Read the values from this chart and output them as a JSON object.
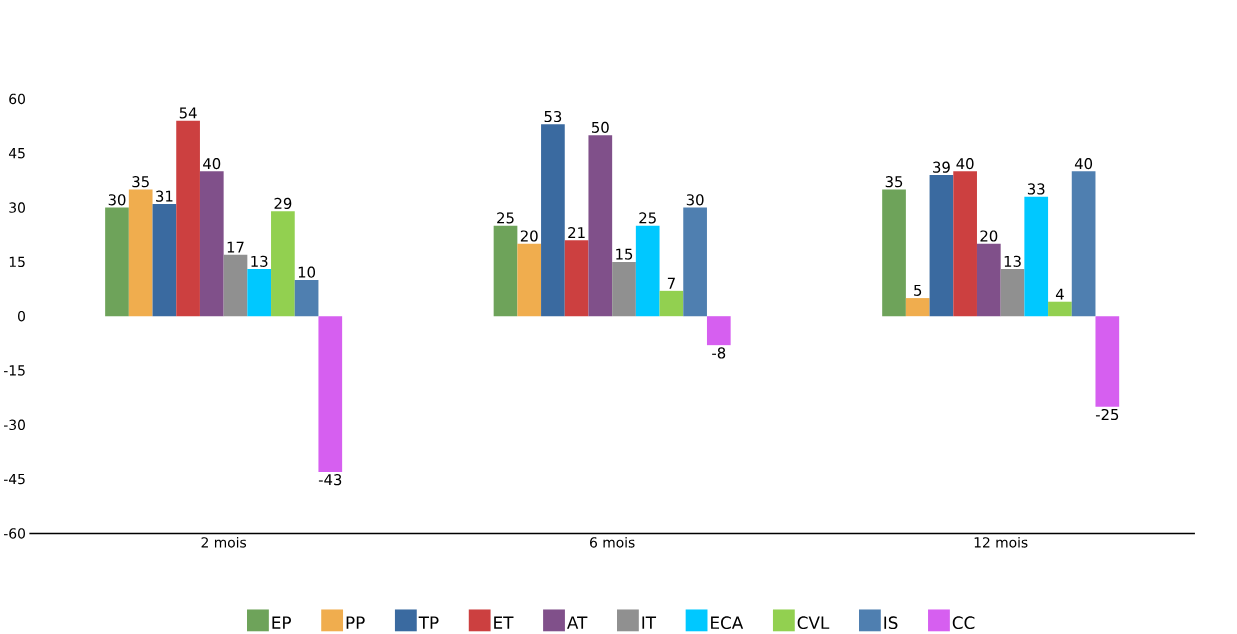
{
  "chart_data": {
    "type": "bar",
    "categories": [
      "2 mois",
      "6 mois",
      "12 mois"
    ],
    "series": [
      {
        "name": "EP",
        "color": "#6ea35a",
        "values": [
          30,
          25,
          35
        ]
      },
      {
        "name": "PP",
        "color": "#f0ad4e",
        "values": [
          35,
          20,
          5
        ]
      },
      {
        "name": "TP",
        "color": "#3a6aa0",
        "values": [
          31,
          53,
          39
        ]
      },
      {
        "name": "ET",
        "color": "#cc4040",
        "values": [
          54,
          21,
          40
        ]
      },
      {
        "name": "AT",
        "color": "#80508a",
        "values": [
          40,
          50,
          20
        ]
      },
      {
        "name": "IT",
        "color": "#909090",
        "values": [
          17,
          15,
          13
        ]
      },
      {
        "name": "ECA",
        "color": "#00c8ff",
        "values": [
          13,
          25,
          33
        ]
      },
      {
        "name": "CVL",
        "color": "#92d050",
        "values": [
          29,
          7,
          4
        ]
      },
      {
        "name": "IS",
        "color": "#4f7fb0",
        "values": [
          10,
          30,
          40
        ]
      },
      {
        "name": "CC",
        "color": "#d65ff0",
        "values": [
          -43,
          -8,
          -25
        ]
      }
    ],
    "ylim": [
      -60,
      60
    ],
    "yticks": [
      -60,
      -45,
      -30,
      -15,
      0,
      15,
      30,
      45,
      60
    ],
    "data_labels": true,
    "grid": false,
    "legend": "bottom"
  }
}
